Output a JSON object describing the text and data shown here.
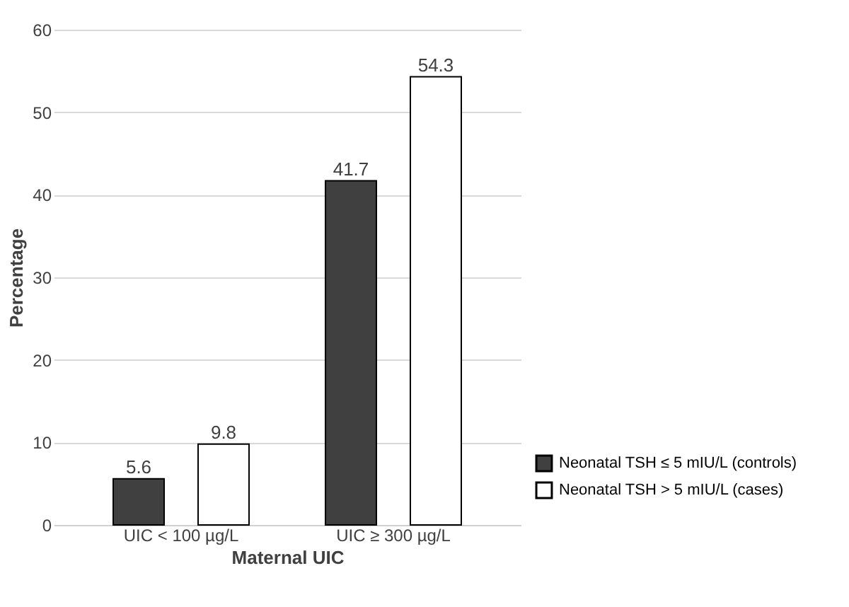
{
  "chart_data": {
    "type": "bar",
    "xlabel": "Maternal UIC",
    "ylabel": "Percentage",
    "categories": [
      "UIC < 100 µg/L",
      "UIC ≥ 300 µg/L"
    ],
    "series": [
      {
        "name": "Neonatal TSH ≤ 5 mIU/L (controls)",
        "color": "#404040",
        "values": [
          5.6,
          41.7
        ]
      },
      {
        "name": "Neonatal TSH > 5 mIU/L (cases)",
        "color": "#ffffff",
        "values": [
          9.8,
          54.3
        ]
      }
    ],
    "ylim": [
      0,
      60
    ],
    "yticks": [
      0,
      10,
      20,
      30,
      40,
      50,
      60
    ],
    "grid": "y",
    "data_labels": true,
    "legend": "bottom right"
  }
}
